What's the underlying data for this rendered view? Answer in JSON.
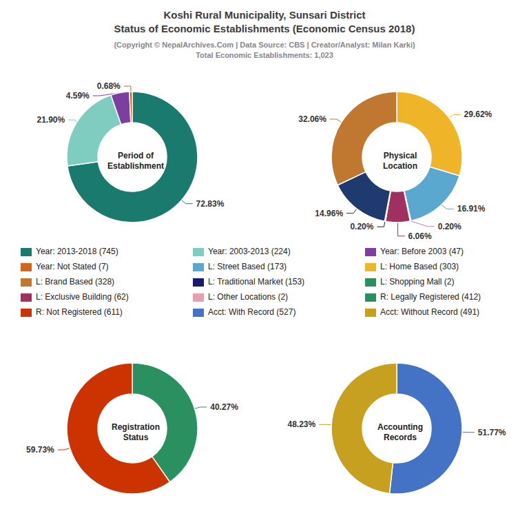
{
  "title": "Koshi Rural Municipality, Sunsari District\nStatus of Economic Establishments (Economic Census 2018)",
  "subtitle": "(Copyright © NepalArchives.Com | Data Source: CBS | Creator/Analyst: Milan Karki)\nTotal Economic Establishments: 1,023",
  "chart_data": [
    {
      "type": "pie",
      "title": "Period of\nEstablishment",
      "values": [
        72.83,
        21.9,
        4.59,
        0.68
      ],
      "value_labels": [
        "72.83%",
        "21.90%",
        "4.59%",
        "0.68%"
      ],
      "colors": [
        "#1a7a6e",
        "#7ecdc0",
        "#7b3fa0",
        "#d4641a"
      ],
      "data_labels": true
    },
    {
      "type": "pie",
      "title": "Physical\nLocation",
      "values": [
        29.62,
        16.91,
        0.2,
        6.06,
        0.2,
        14.96,
        32.06
      ],
      "value_labels": [
        "29.62%",
        "16.91%",
        "0.20%",
        "6.06%",
        "0.20%",
        "14.96%",
        "32.06%"
      ],
      "colors": [
        "#f0b429",
        "#5aa8d0",
        "#c47faa",
        "#a03060",
        "#191970",
        "#1e3a6e",
        "#c07830"
      ],
      "data_labels": true
    },
    {
      "type": "pie",
      "title": "Registration\nStatus",
      "values": [
        40.27,
        59.73
      ],
      "value_labels": [
        "40.27%",
        "59.73%"
      ],
      "colors": [
        "#2a9060",
        "#cc3300"
      ],
      "data_labels": true
    },
    {
      "type": "pie",
      "title": "Accounting\nRecords",
      "values": [
        51.77,
        48.23
      ],
      "value_labels": [
        "51.77%",
        "48.23%"
      ],
      "colors": [
        "#4472c4",
        "#c8a020"
      ],
      "data_labels": true
    }
  ],
  "legend_entries": [
    {
      "name": "Year: 2013-2018 (745)",
      "color": "#1a7a6e"
    },
    {
      "name": "Year: Not Stated (7)",
      "color": "#d4641a"
    },
    {
      "name": "L: Brand Based (328)",
      "color": "#c07830"
    },
    {
      "name": "L: Exclusive Building (62)",
      "color": "#a03060"
    },
    {
      "name": "R: Not Registered (611)",
      "color": "#cc3300"
    },
    {
      "name": "Year: 2003-2013 (224)",
      "color": "#7ecdc0"
    },
    {
      "name": "L: Street Based (173)",
      "color": "#5aa8d0"
    },
    {
      "name": "L: Traditional Market (153)",
      "color": "#191970"
    },
    {
      "name": "L: Other Locations (2)",
      "color": "#e8a0b0"
    },
    {
      "name": "Acct: With Record (527)",
      "color": "#4472c4"
    },
    {
      "name": "Year: Before 2003 (47)",
      "color": "#7b3fa0"
    },
    {
      "name": "L: Home Based (303)",
      "color": "#f0b429"
    },
    {
      "name": "L: Shopping Mall (2)",
      "color": "#2a9060"
    },
    {
      "name": "R: Legally Registered (412)",
      "color": "#2a9060"
    },
    {
      "name": "Acct: Without Record (491)",
      "color": "#c8a020"
    }
  ]
}
